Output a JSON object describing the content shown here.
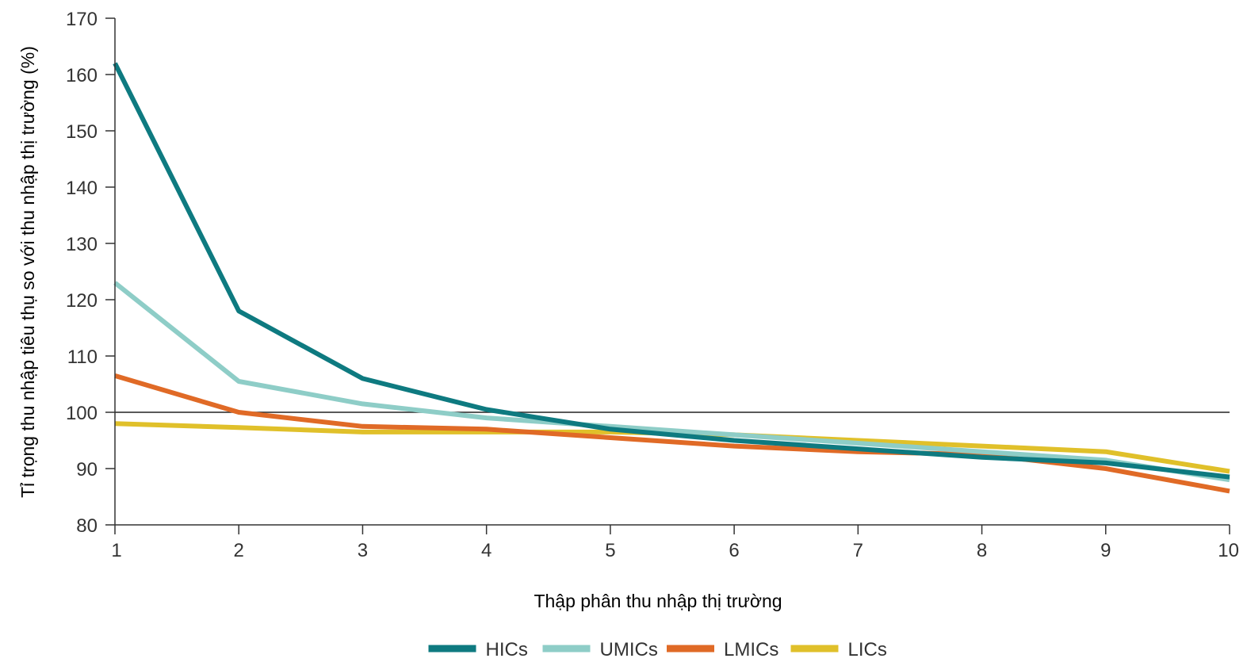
{
  "chart_data": {
    "type": "line",
    "xlabel": "Thập phân thu nhập thị trường",
    "ylabel": "Tỉ trọng thu nhập tiêu thụ so với thu nhập thị trường (%)",
    "x": [
      1,
      2,
      3,
      4,
      5,
      6,
      7,
      8,
      9,
      10
    ],
    "xlim": [
      1,
      10
    ],
    "ylim": [
      80,
      170
    ],
    "yticks": [
      80,
      90,
      100,
      110,
      120,
      130,
      140,
      150,
      160,
      170
    ],
    "xticks": [
      1,
      2,
      3,
      4,
      5,
      6,
      7,
      8,
      9,
      10
    ],
    "reference_line": 100,
    "grid": false,
    "legend_position": "bottom-center",
    "series": [
      {
        "name": "HICs",
        "color": "#0e7a80",
        "values": [
          162,
          118,
          106,
          100.5,
          97,
          95,
          93.5,
          92,
          91,
          88.5
        ]
      },
      {
        "name": "UMICs",
        "color": "#8ecdc7",
        "values": [
          123,
          105.5,
          101.5,
          99,
          97.5,
          96,
          94.5,
          93,
          91.5,
          88
        ]
      },
      {
        "name": "LMICs",
        "color": "#e06a26",
        "values": [
          106.5,
          100,
          97.5,
          97,
          95.5,
          94,
          93,
          92.5,
          90,
          86
        ]
      },
      {
        "name": "LICs",
        "color": "#e0c02a",
        "values": [
          98,
          97.3,
          96.5,
          96.5,
          96.5,
          96,
          95,
          94,
          93,
          89.5
        ]
      }
    ]
  }
}
